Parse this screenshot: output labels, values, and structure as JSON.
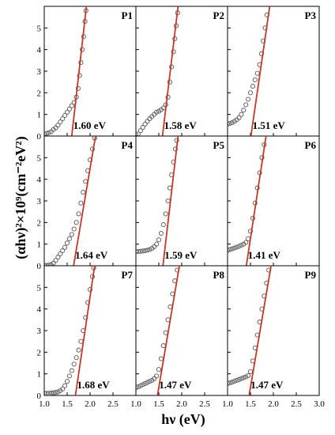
{
  "chart_data": {
    "type": "scatter",
    "xlabel": "hν (eV)",
    "ylabel": "(αhν)²×10⁹(cm⁻²eV²)",
    "xlim": [
      1.0,
      3.0
    ],
    "ylim": [
      0,
      6
    ],
    "xticks": [
      1.0,
      1.5,
      2.0,
      2.5,
      3.0
    ],
    "yticks": [
      0,
      1,
      2,
      3,
      4,
      5
    ],
    "grid": false,
    "layout": "3x3 grid of panels with shared axes",
    "fit_line_color": "#c0392b",
    "marker_style": "open circles",
    "panels": [
      {
        "name": "P1",
        "band_gap_label": "1.60 eV",
        "band_gap": 1.6,
        "fit_line": [
          [
            1.6,
            0
          ],
          [
            1.92,
            6
          ]
        ],
        "points": [
          [
            1.0,
            0.08
          ],
          [
            1.05,
            0.12
          ],
          [
            1.1,
            0.15
          ],
          [
            1.15,
            0.2
          ],
          [
            1.2,
            0.3
          ],
          [
            1.25,
            0.38
          ],
          [
            1.3,
            0.5
          ],
          [
            1.35,
            0.65
          ],
          [
            1.4,
            0.8
          ],
          [
            1.45,
            0.95
          ],
          [
            1.5,
            1.1
          ],
          [
            1.55,
            1.25
          ],
          [
            1.6,
            1.4
          ],
          [
            1.65,
            1.55
          ],
          [
            1.7,
            1.8
          ],
          [
            1.74,
            2.2
          ],
          [
            1.77,
            2.8
          ],
          [
            1.8,
            3.4
          ],
          [
            1.83,
            4.0
          ],
          [
            1.86,
            4.6
          ],
          [
            1.89,
            5.3
          ],
          [
            1.91,
            5.8
          ]
        ]
      },
      {
        "name": "P2",
        "band_gap_label": "1.58 eV",
        "band_gap": 1.58,
        "fit_line": [
          [
            1.58,
            0
          ],
          [
            1.92,
            6
          ]
        ],
        "points": [
          [
            1.0,
            0.05
          ],
          [
            1.05,
            0.1
          ],
          [
            1.1,
            0.25
          ],
          [
            1.15,
            0.4
          ],
          [
            1.2,
            0.55
          ],
          [
            1.25,
            0.68
          ],
          [
            1.3,
            0.8
          ],
          [
            1.35,
            0.9
          ],
          [
            1.4,
            1.0
          ],
          [
            1.45,
            1.1
          ],
          [
            1.5,
            1.15
          ],
          [
            1.55,
            1.22
          ],
          [
            1.6,
            1.3
          ],
          [
            1.65,
            1.45
          ],
          [
            1.7,
            1.8
          ],
          [
            1.74,
            2.5
          ],
          [
            1.78,
            3.2
          ],
          [
            1.82,
            3.9
          ],
          [
            1.85,
            4.5
          ],
          [
            1.88,
            5.1
          ],
          [
            1.91,
            5.7
          ]
        ]
      },
      {
        "name": "P3",
        "band_gap_label": "1.51 eV",
        "band_gap": 1.51,
        "fit_line": [
          [
            1.51,
            0
          ],
          [
            1.92,
            6
          ]
        ],
        "points": [
          [
            1.0,
            0.55
          ],
          [
            1.05,
            0.58
          ],
          [
            1.1,
            0.62
          ],
          [
            1.15,
            0.68
          ],
          [
            1.2,
            0.75
          ],
          [
            1.25,
            0.85
          ],
          [
            1.3,
            1.0
          ],
          [
            1.35,
            1.2
          ],
          [
            1.4,
            1.45
          ],
          [
            1.45,
            1.7
          ],
          [
            1.5,
            2.0
          ],
          [
            1.55,
            2.3
          ],
          [
            1.6,
            2.6
          ],
          [
            1.65,
            2.9
          ],
          [
            1.7,
            3.3
          ],
          [
            1.74,
            3.8
          ],
          [
            1.78,
            4.4
          ],
          [
            1.82,
            5.0
          ],
          [
            1.86,
            5.6
          ]
        ]
      },
      {
        "name": "P4",
        "band_gap_label": "1.64 eV",
        "band_gap": 1.64,
        "fit_line": [
          [
            1.64,
            0
          ],
          [
            2.12,
            6
          ]
        ],
        "points": [
          [
            1.0,
            0.02
          ],
          [
            1.05,
            0.02
          ],
          [
            1.1,
            0.03
          ],
          [
            1.15,
            0.05
          ],
          [
            1.2,
            0.12
          ],
          [
            1.25,
            0.25
          ],
          [
            1.3,
            0.4
          ],
          [
            1.35,
            0.55
          ],
          [
            1.4,
            0.7
          ],
          [
            1.45,
            0.85
          ],
          [
            1.5,
            1.05
          ],
          [
            1.55,
            1.25
          ],
          [
            1.6,
            1.45
          ],
          [
            1.65,
            1.7
          ],
          [
            1.7,
            2.0
          ],
          [
            1.75,
            2.4
          ],
          [
            1.8,
            2.9
          ],
          [
            1.85,
            3.4
          ],
          [
            1.9,
            3.9
          ],
          [
            1.95,
            4.4
          ],
          [
            2.0,
            4.9
          ],
          [
            2.05,
            5.4
          ],
          [
            2.1,
            5.9
          ]
        ]
      },
      {
        "name": "P5",
        "band_gap_label": "1.59 eV",
        "band_gap": 1.59,
        "fit_line": [
          [
            1.59,
            0
          ],
          [
            1.92,
            6
          ]
        ],
        "points": [
          [
            1.0,
            0.65
          ],
          [
            1.05,
            0.66
          ],
          [
            1.1,
            0.67
          ],
          [
            1.15,
            0.68
          ],
          [
            1.2,
            0.7
          ],
          [
            1.25,
            0.72
          ],
          [
            1.3,
            0.75
          ],
          [
            1.35,
            0.8
          ],
          [
            1.4,
            0.88
          ],
          [
            1.45,
            1.0
          ],
          [
            1.5,
            1.2
          ],
          [
            1.55,
            1.5
          ],
          [
            1.6,
            1.9
          ],
          [
            1.65,
            2.4
          ],
          [
            1.7,
            3.0
          ],
          [
            1.74,
            3.6
          ],
          [
            1.78,
            4.2
          ],
          [
            1.82,
            4.8
          ],
          [
            1.86,
            5.4
          ],
          [
            1.89,
            5.8
          ]
        ]
      },
      {
        "name": "P6",
        "band_gap_label": "1.41 eV",
        "band_gap": 1.41,
        "fit_line": [
          [
            1.41,
            0
          ],
          [
            1.84,
            6
          ]
        ],
        "points": [
          [
            1.0,
            0.7
          ],
          [
            1.05,
            0.75
          ],
          [
            1.1,
            0.78
          ],
          [
            1.15,
            0.82
          ],
          [
            1.2,
            0.86
          ],
          [
            1.25,
            0.9
          ],
          [
            1.3,
            0.95
          ],
          [
            1.35,
            1.0
          ],
          [
            1.4,
            1.08
          ],
          [
            1.45,
            1.25
          ],
          [
            1.5,
            1.6
          ],
          [
            1.55,
            2.2
          ],
          [
            1.6,
            2.9
          ],
          [
            1.65,
            3.6
          ],
          [
            1.7,
            4.3
          ],
          [
            1.75,
            5.0
          ],
          [
            1.8,
            5.6
          ]
        ]
      },
      {
        "name": "P7",
        "band_gap_label": "1.68 eV",
        "band_gap": 1.68,
        "fit_line": [
          [
            1.68,
            0
          ],
          [
            2.1,
            6
          ]
        ],
        "points": [
          [
            1.0,
            0.1
          ],
          [
            1.05,
            0.1
          ],
          [
            1.1,
            0.1
          ],
          [
            1.15,
            0.11
          ],
          [
            1.2,
            0.12
          ],
          [
            1.25,
            0.14
          ],
          [
            1.3,
            0.17
          ],
          [
            1.35,
            0.22
          ],
          [
            1.4,
            0.3
          ],
          [
            1.45,
            0.45
          ],
          [
            1.5,
            0.65
          ],
          [
            1.55,
            0.9
          ],
          [
            1.6,
            1.15
          ],
          [
            1.65,
            1.45
          ],
          [
            1.7,
            1.75
          ],
          [
            1.75,
            2.1
          ],
          [
            1.8,
            2.5
          ],
          [
            1.85,
            3.0
          ],
          [
            1.9,
            3.6
          ],
          [
            1.95,
            4.3
          ],
          [
            2.0,
            4.9
          ],
          [
            2.05,
            5.5
          ],
          [
            2.08,
            5.9
          ]
        ]
      },
      {
        "name": "P8",
        "band_gap_label": "1.47 eV",
        "band_gap": 1.47,
        "fit_line": [
          [
            1.47,
            0
          ],
          [
            1.95,
            6
          ]
        ],
        "points": [
          [
            1.0,
            0.35
          ],
          [
            1.05,
            0.4
          ],
          [
            1.1,
            0.45
          ],
          [
            1.15,
            0.5
          ],
          [
            1.2,
            0.55
          ],
          [
            1.25,
            0.6
          ],
          [
            1.3,
            0.65
          ],
          [
            1.35,
            0.7
          ],
          [
            1.4,
            0.78
          ],
          [
            1.45,
            0.9
          ],
          [
            1.5,
            1.2
          ],
          [
            1.55,
            1.7
          ],
          [
            1.6,
            2.3
          ],
          [
            1.65,
            2.9
          ],
          [
            1.7,
            3.5
          ],
          [
            1.75,
            4.1
          ],
          [
            1.8,
            4.7
          ],
          [
            1.85,
            5.3
          ],
          [
            1.9,
            5.8
          ]
        ]
      },
      {
        "name": "P9",
        "band_gap_label": "1.47 eV",
        "band_gap": 1.47,
        "fit_line": [
          [
            1.47,
            0
          ],
          [
            1.95,
            6
          ]
        ],
        "points": [
          [
            1.0,
            0.55
          ],
          [
            1.05,
            0.58
          ],
          [
            1.1,
            0.62
          ],
          [
            1.15,
            0.66
          ],
          [
            1.2,
            0.7
          ],
          [
            1.25,
            0.74
          ],
          [
            1.3,
            0.78
          ],
          [
            1.35,
            0.82
          ],
          [
            1.4,
            0.86
          ],
          [
            1.45,
            0.92
          ],
          [
            1.5,
            1.1
          ],
          [
            1.55,
            1.6
          ],
          [
            1.6,
            2.2
          ],
          [
            1.65,
            2.8
          ],
          [
            1.7,
            3.4
          ],
          [
            1.75,
            4.0
          ],
          [
            1.8,
            4.6
          ],
          [
            1.85,
            5.2
          ],
          [
            1.9,
            5.8
          ]
        ]
      }
    ]
  }
}
